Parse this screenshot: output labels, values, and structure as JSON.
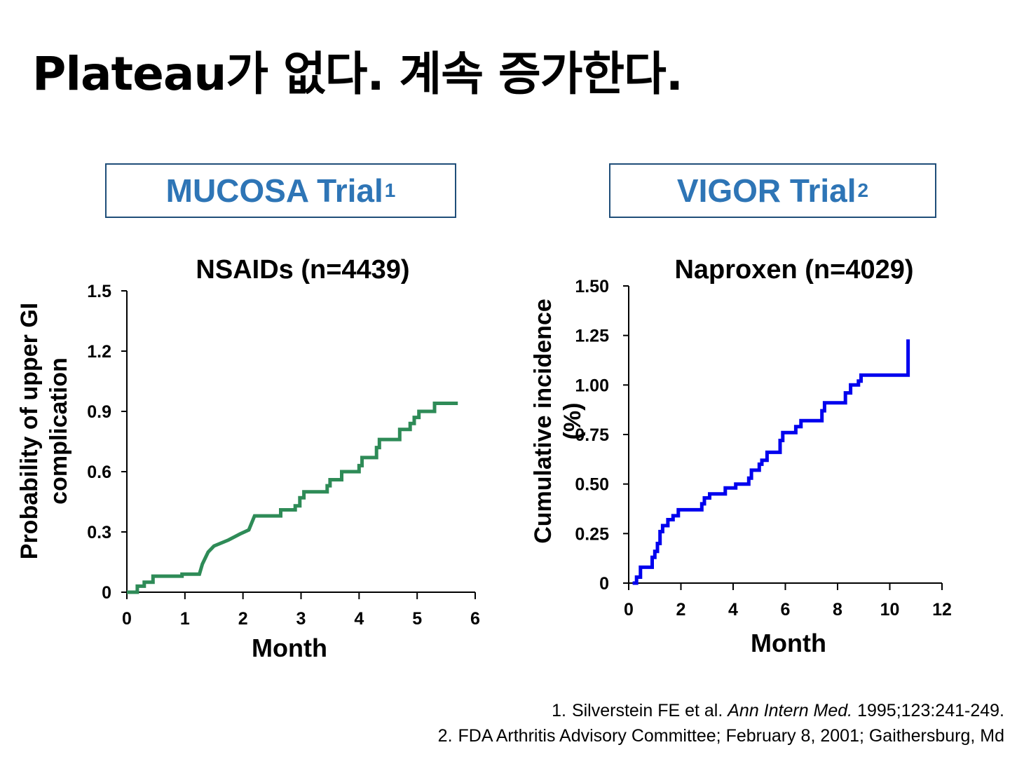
{
  "slide": {
    "title": "Plateau가 없다. 계속 증가한다."
  },
  "boxes": [
    {
      "label": "MUCOSA Trial",
      "sup": "1"
    },
    {
      "label": "VIGOR Trial",
      "sup": "2"
    }
  ],
  "colors": {
    "box_text": "#2e75b6",
    "box_border": "#1f4e79",
    "nsaids_line": "#2e8b57",
    "naproxen_line": "#0000ee"
  },
  "chart_data": [
    {
      "type": "line",
      "step": true,
      "title": "NSAIDs (n=4439)",
      "xlabel": "Month",
      "ylabel_lines": [
        "Probability of upper GI",
        "complication"
      ],
      "xlim": [
        0,
        6
      ],
      "ylim": [
        0,
        1.5
      ],
      "xticks": [
        "0",
        "1",
        "2",
        "3",
        "4",
        "5",
        "6"
      ],
      "yticks": [
        "0",
        "0.3",
        "0.6",
        "0.9",
        "1.2",
        "1.5"
      ],
      "grid": false,
      "series": [
        {
          "x": [
            0,
            0.18,
            0.18,
            0.3,
            0.3,
            0.45,
            0.45,
            0.95,
            0.95,
            1.25,
            1.3,
            1.4,
            1.5,
            1.5,
            1.75,
            1.75,
            1.95,
            1.95,
            2.1,
            2.1,
            2.2,
            2.2,
            2.65,
            2.65,
            2.9,
            2.9,
            2.98,
            2.98,
            3.05,
            3.05,
            3.45,
            3.45,
            3.5,
            3.5,
            3.7,
            3.7,
            4.0,
            4.0,
            4.05,
            4.05,
            4.3,
            4.3,
            4.35,
            4.35,
            4.45,
            4.45,
            4.7,
            4.7,
            4.88,
            4.88,
            4.95,
            4.95,
            5.03,
            5.03,
            5.3,
            5.3,
            5.7
          ],
          "y": [
            0,
            0,
            0.03,
            0.03,
            0.05,
            0.05,
            0.08,
            0.08,
            0.09,
            0.09,
            0.14,
            0.2,
            0.23,
            0.23,
            0.26,
            0.26,
            0.29,
            0.29,
            0.31,
            0.31,
            0.38,
            0.38,
            0.38,
            0.41,
            0.41,
            0.43,
            0.43,
            0.47,
            0.47,
            0.5,
            0.5,
            0.53,
            0.53,
            0.56,
            0.56,
            0.6,
            0.6,
            0.63,
            0.63,
            0.67,
            0.67,
            0.72,
            0.72,
            0.76,
            0.76,
            0.76,
            0.76,
            0.81,
            0.81,
            0.84,
            0.84,
            0.87,
            0.87,
            0.9,
            0.9,
            0.94,
            0.94
          ]
        }
      ]
    },
    {
      "type": "line",
      "step": true,
      "title": "Naproxen (n=4029)",
      "xlabel": "Month",
      "ylabel_lines": [
        "Cumulative incidence",
        "(%)"
      ],
      "xlim": [
        0,
        12
      ],
      "ylim": [
        0,
        1.5
      ],
      "xticks": [
        "0",
        "2",
        "4",
        "6",
        "8",
        "10",
        "12"
      ],
      "yticks": [
        "0",
        "0.25",
        "0.50",
        "0.75",
        "1.00",
        "1.25",
        "1.50"
      ],
      "grid": false,
      "series": [
        {
          "x": [
            0.15,
            0.3,
            0.3,
            0.45,
            0.45,
            0.9,
            0.9,
            1.0,
            1.0,
            1.1,
            1.1,
            1.2,
            1.2,
            1.3,
            1.3,
            1.5,
            1.5,
            1.7,
            1.7,
            1.9,
            1.9,
            2.8,
            2.8,
            2.9,
            2.9,
            3.1,
            3.1,
            3.7,
            3.7,
            4.1,
            4.1,
            4.6,
            4.6,
            4.7,
            4.7,
            5.0,
            5.0,
            5.1,
            5.1,
            5.3,
            5.3,
            5.8,
            5.8,
            5.9,
            5.9,
            6.4,
            6.4,
            6.6,
            6.6,
            6.9,
            6.9,
            7.4,
            7.4,
            7.5,
            7.5,
            8.3,
            8.3,
            8.5,
            8.5,
            8.8,
            8.8,
            8.9,
            8.9,
            10.7,
            10.7
          ],
          "y": [
            0,
            0,
            0.03,
            0.03,
            0.08,
            0.08,
            0.13,
            0.13,
            0.16,
            0.16,
            0.2,
            0.2,
            0.26,
            0.26,
            0.29,
            0.29,
            0.32,
            0.32,
            0.34,
            0.34,
            0.37,
            0.37,
            0.4,
            0.4,
            0.43,
            0.43,
            0.45,
            0.45,
            0.48,
            0.48,
            0.5,
            0.5,
            0.53,
            0.53,
            0.57,
            0.57,
            0.6,
            0.6,
            0.62,
            0.62,
            0.66,
            0.66,
            0.72,
            0.72,
            0.76,
            0.76,
            0.79,
            0.79,
            0.82,
            0.82,
            0.82,
            0.82,
            0.87,
            0.87,
            0.91,
            0.91,
            0.96,
            0.96,
            1.0,
            1.0,
            1.02,
            1.02,
            1.05,
            1.05,
            1.23
          ]
        }
      ]
    }
  ],
  "references": [
    {
      "num": "1.",
      "pre": "Silverstein FE et al. ",
      "journal": "Ann Intern Med.",
      "post": " 1995;123:241-249."
    },
    {
      "num": "2.",
      "pre": "FDA Arthritis Advisory  Committee; February 8, 2001;  Gaithersburg, Md",
      "journal": "",
      "post": ""
    }
  ]
}
